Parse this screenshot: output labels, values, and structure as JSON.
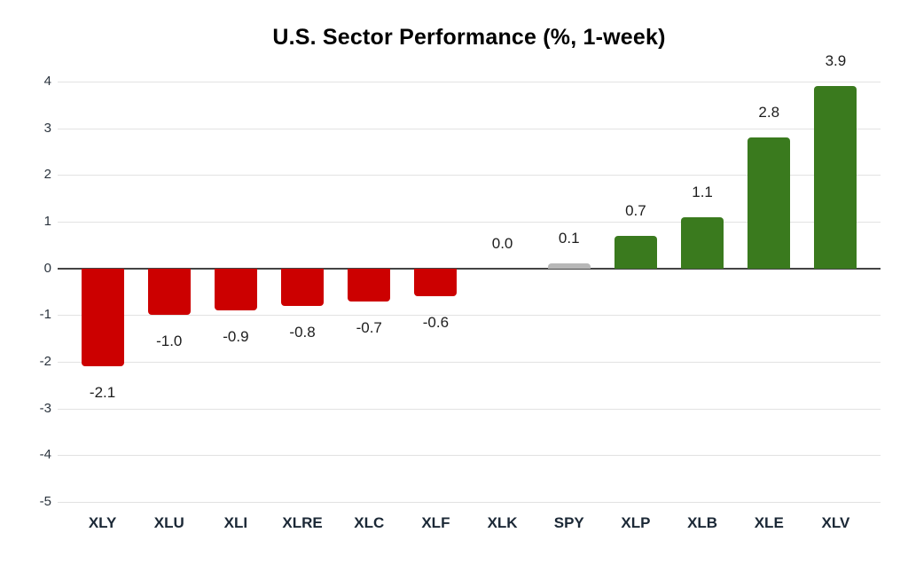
{
  "chart_data": {
    "type": "bar",
    "title": "U.S. Sector Performance (%, 1-week)",
    "categories": [
      "XLY",
      "XLU",
      "XLI",
      "XLRE",
      "XLC",
      "XLF",
      "XLK",
      "SPY",
      "XLP",
      "XLB",
      "XLE",
      "XLV"
    ],
    "values": [
      -2.1,
      -1.0,
      -0.9,
      -0.8,
      -0.7,
      -0.6,
      0.0,
      0.1,
      0.7,
      1.1,
      2.8,
      3.9
    ],
    "value_labels": [
      "-2.1",
      "-1.0",
      "-0.9",
      "-0.8",
      "-0.7",
      "-0.6",
      "0.0",
      "0.1",
      "0.7",
      "1.1",
      "2.8",
      "3.9"
    ],
    "bar_colors": [
      "#cc0000",
      "#cc0000",
      "#cc0000",
      "#cc0000",
      "#cc0000",
      "#cc0000",
      "#3a7a1e",
      "#b7b7b7",
      "#3a7a1e",
      "#3a7a1e",
      "#3a7a1e",
      "#3a7a1e"
    ],
    "yticks": [
      "4",
      "3",
      "2",
      "1",
      "0",
      "-1",
      "-2",
      "-3",
      "-4",
      "-5"
    ],
    "ytick_values": [
      4,
      3,
      2,
      1,
      0,
      -1,
      -2,
      -3,
      -4,
      -5
    ],
    "ylim": [
      -5,
      4
    ],
    "xlabel": "",
    "ylabel": "",
    "grid": true,
    "legend_position": "none",
    "colors": {
      "negative_bar": "#cc0000",
      "positive_bar": "#3a7a1e",
      "benchmark_bar": "#b7b7b7",
      "gridline": "#e2e2e2",
      "zero_line": "#444444",
      "axis_label_text": "#1b2836",
      "tick_text": "#2a333d",
      "value_label_text": "#1d1d1d",
      "title_text": "#000000",
      "background": "#ffffff"
    }
  }
}
